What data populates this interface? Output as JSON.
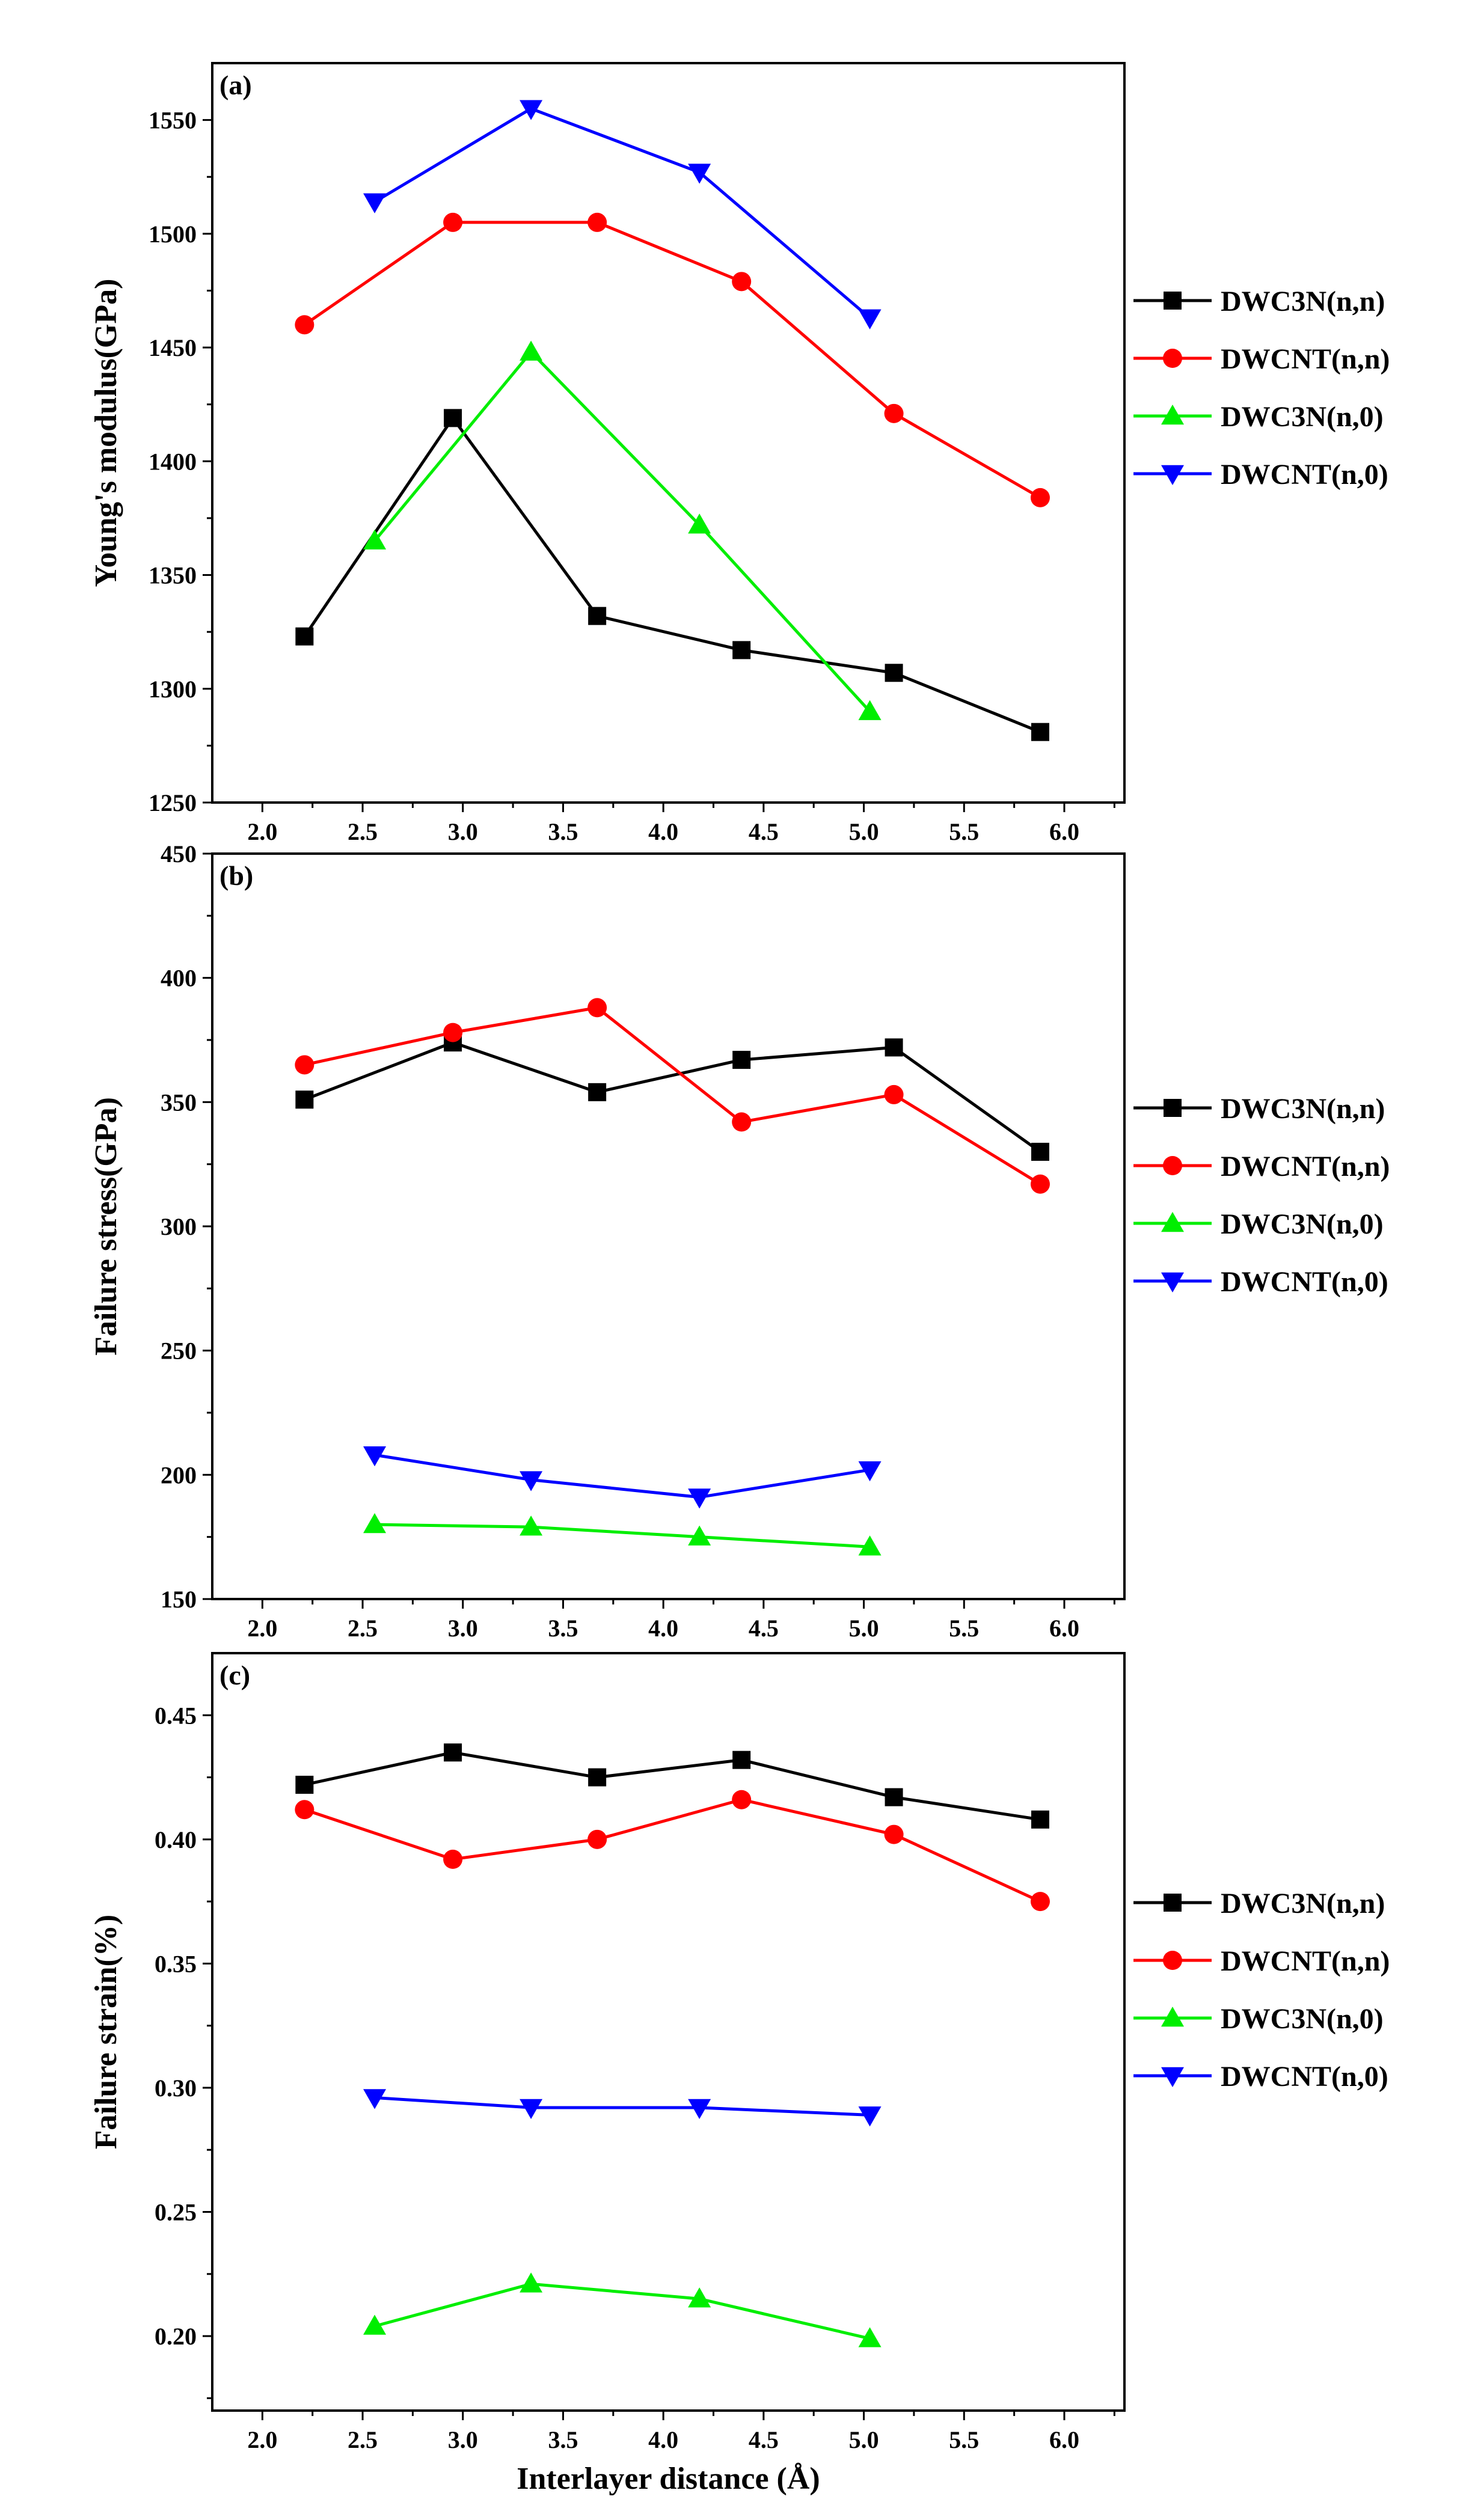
{
  "chart_data": [
    {
      "type": "line",
      "panel_label": "(a)",
      "ylabel": "Young's modulus(GPa)",
      "xlabel": "",
      "xlim": [
        1.75,
        6.3
      ],
      "ylim": [
        1250,
        1575
      ],
      "xticks": [
        "2.0",
        "2.5",
        "3.0",
        "3.5",
        "4.0",
        "4.5",
        "5.0",
        "5.5",
        "6.0"
      ],
      "yticks": [
        "1250",
        "1300",
        "1350",
        "1400",
        "1450",
        "1500",
        "1550"
      ],
      "legend": "right",
      "series": [
        {
          "name": "DWC3N(n,n)",
          "color": "#000000",
          "marker": "square",
          "x": [
            2.21,
            2.95,
            3.67,
            4.39,
            5.15,
            5.88
          ],
          "y": [
            1323,
            1419,
            1332,
            1317,
            1307,
            1281
          ]
        },
        {
          "name": "DWCNT(n,n)",
          "color": "#ff0000",
          "marker": "circle",
          "x": [
            2.21,
            2.95,
            3.67,
            4.39,
            5.15,
            5.88
          ],
          "y": [
            1460,
            1505,
            1505,
            1479,
            1421,
            1384
          ]
        },
        {
          "name": "DWC3N(n,0)",
          "color": "#00ee00",
          "marker": "triangle-up",
          "x": [
            2.56,
            3.34,
            4.18,
            5.03
          ],
          "y": [
            1365,
            1448,
            1372,
            1290
          ]
        },
        {
          "name": "DWCNT(n,0)",
          "color": "#0000ff",
          "marker": "triangle-down",
          "x": [
            2.56,
            3.34,
            4.18,
            5.03
          ],
          "y": [
            1514,
            1555,
            1527,
            1463
          ]
        }
      ]
    },
    {
      "type": "line",
      "panel_label": "(b)",
      "ylabel": "Failure stress(GPa)",
      "xlabel": "",
      "xlim": [
        1.75,
        6.3
      ],
      "ylim": [
        150,
        450
      ],
      "xticks": [
        "2.0",
        "2.5",
        "3.0",
        "3.5",
        "4.0",
        "4.5",
        "5.0",
        "5.5",
        "6.0"
      ],
      "yticks": [
        "150",
        "200",
        "250",
        "300",
        "350",
        "400",
        "450"
      ],
      "legend": "right",
      "series": [
        {
          "name": "DWC3N(n,n)",
          "color": "#000000",
          "marker": "square",
          "x": [
            2.21,
            2.95,
            3.67,
            4.39,
            5.15,
            5.88
          ],
          "y": [
            351,
            374,
            354,
            367,
            372,
            330
          ]
        },
        {
          "name": "DWCNT(n,n)",
          "color": "#ff0000",
          "marker": "circle",
          "x": [
            2.21,
            2.95,
            3.67,
            4.39,
            5.15,
            5.88
          ],
          "y": [
            365,
            378,
            388,
            342,
            353,
            317
          ]
        },
        {
          "name": "DWC3N(n,0)",
          "color": "#00ee00",
          "marker": "triangle-up",
          "x": [
            2.56,
            3.34,
            4.18,
            5.03
          ],
          "y": [
            180,
            179,
            175,
            171
          ]
        },
        {
          "name": "DWCNT(n,0)",
          "color": "#0000ff",
          "marker": "triangle-down",
          "x": [
            2.56,
            3.34,
            4.18,
            5.03
          ],
          "y": [
            208,
            198,
            191,
            202
          ]
        }
      ]
    },
    {
      "type": "line",
      "panel_label": "(c)",
      "ylabel": "Failure strain(%)",
      "xlabel": "Interlayer distance (Å)",
      "xlim": [
        1.75,
        6.3
      ],
      "ylim": [
        0.17,
        0.475
      ],
      "xticks": [
        "2.0",
        "2.5",
        "3.0",
        "3.5",
        "4.0",
        "4.5",
        "5.0",
        "5.5",
        "6.0"
      ],
      "yticks": [
        "0.20",
        "0.25",
        "0.30",
        "0.35",
        "0.40",
        "0.45"
      ],
      "legend": "right",
      "series": [
        {
          "name": "DWC3N(n,n)",
          "color": "#000000",
          "marker": "square",
          "x": [
            2.21,
            2.95,
            3.67,
            4.39,
            5.15,
            5.88
          ],
          "y": [
            0.422,
            0.435,
            0.425,
            0.432,
            0.417,
            0.408
          ]
        },
        {
          "name": "DWCNT(n,n)",
          "color": "#ff0000",
          "marker": "circle",
          "x": [
            2.21,
            2.95,
            3.67,
            4.39,
            5.15,
            5.88
          ],
          "y": [
            0.412,
            0.392,
            0.4,
            0.416,
            0.402,
            0.375
          ]
        },
        {
          "name": "DWC3N(n,0)",
          "color": "#00ee00",
          "marker": "triangle-up",
          "x": [
            2.56,
            3.34,
            4.18,
            5.03
          ],
          "y": [
            0.204,
            0.221,
            0.215,
            0.199
          ]
        },
        {
          "name": "DWCNT(n,0)",
          "color": "#0000ff",
          "marker": "triangle-down",
          "x": [
            2.56,
            3.34,
            4.18,
            5.03
          ],
          "y": [
            0.296,
            0.292,
            0.292,
            0.289
          ]
        }
      ]
    }
  ]
}
